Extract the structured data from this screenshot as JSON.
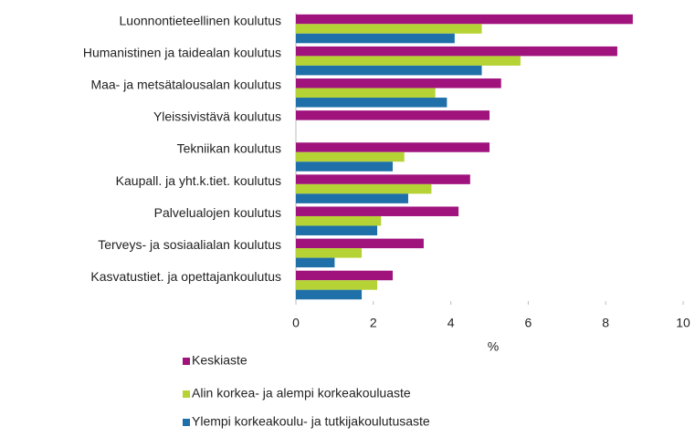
{
  "chart_data": {
    "type": "bar",
    "orientation": "horizontal",
    "categories": [
      "Luonnontieteellinen koulutus",
      "Humanistinen ja taidealan koulutus",
      "Maa- ja metsätalousalan koulutus",
      "Yleissivistävä koulutus",
      "Tekniikan koulutus",
      "Kaupall. ja yht.k.tiet. koulutus",
      "Palvelualojen koulutus",
      "Terveys- ja sosiaalialan koulutus",
      "Kasvatustiet. ja opettajankoulutus"
    ],
    "series": [
      {
        "name": "Keskiaste",
        "color": "#a0137d",
        "values": [
          8.7,
          8.3,
          5.3,
          5.0,
          5.0,
          4.5,
          4.2,
          3.3,
          2.5
        ]
      },
      {
        "name": "Alin korkea- ja alempi korkeakouluaste",
        "color": "#b5d334",
        "values": [
          4.8,
          5.8,
          3.6,
          null,
          2.8,
          3.5,
          2.2,
          1.7,
          2.1
        ]
      },
      {
        "name": "Ylempi korkeakoulu- ja tutkijakoulutusaste",
        "color": "#1f6fa8",
        "values": [
          4.1,
          4.8,
          3.9,
          null,
          2.5,
          2.9,
          2.1,
          1.0,
          1.7
        ]
      }
    ],
    "xlabel": "%",
    "xlim": [
      0,
      10
    ],
    "xticks": [
      0,
      2,
      4,
      6,
      8,
      10
    ],
    "legend": "bottom"
  }
}
